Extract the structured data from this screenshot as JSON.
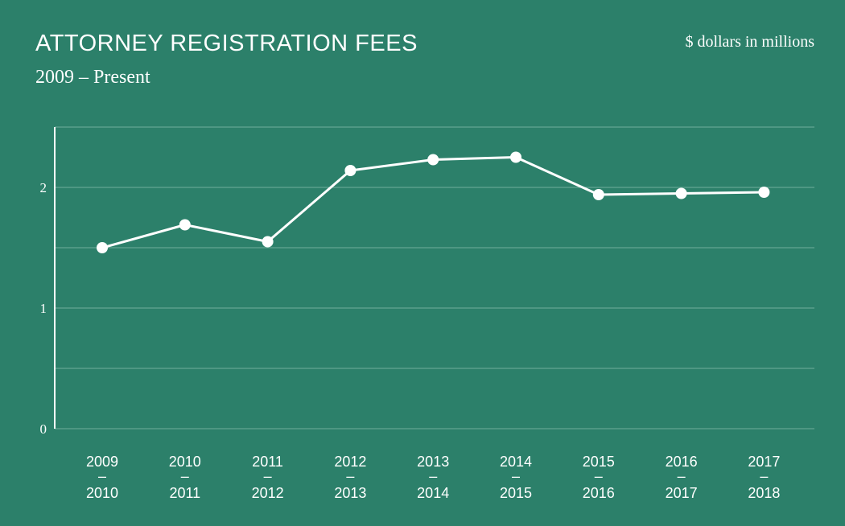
{
  "header": {
    "title": "ATTORNEY REGISTRATION FEES",
    "subtitle": "2009 – Present",
    "units": "$ dollars in millions"
  },
  "colors": {
    "background": "#2c806a",
    "line": "#ffffff",
    "gridline": "#6fae9c"
  },
  "chart_data": {
    "type": "line",
    "title": "ATTORNEY REGISTRATION FEES",
    "subtitle": "2009 – Present",
    "ylabel": "$ dollars in millions",
    "xlabel": "",
    "categories": [
      [
        "2009",
        "–",
        "2010"
      ],
      [
        "2010",
        "–",
        "2011"
      ],
      [
        "2011",
        "–",
        "2012"
      ],
      [
        "2012",
        "–",
        "2013"
      ],
      [
        "2013",
        "–",
        "2014"
      ],
      [
        "2014",
        "–",
        "2015"
      ],
      [
        "2015",
        "–",
        "2016"
      ],
      [
        "2016",
        "–",
        "2017"
      ],
      [
        "2017",
        "–",
        "2018"
      ]
    ],
    "values": [
      1.5,
      1.69,
      1.55,
      2.14,
      2.23,
      2.25,
      1.94,
      1.95,
      1.96
    ],
    "yticks": [
      0,
      1,
      2
    ],
    "ylim": [
      0,
      2.5
    ],
    "grid": true,
    "legend": "none"
  }
}
